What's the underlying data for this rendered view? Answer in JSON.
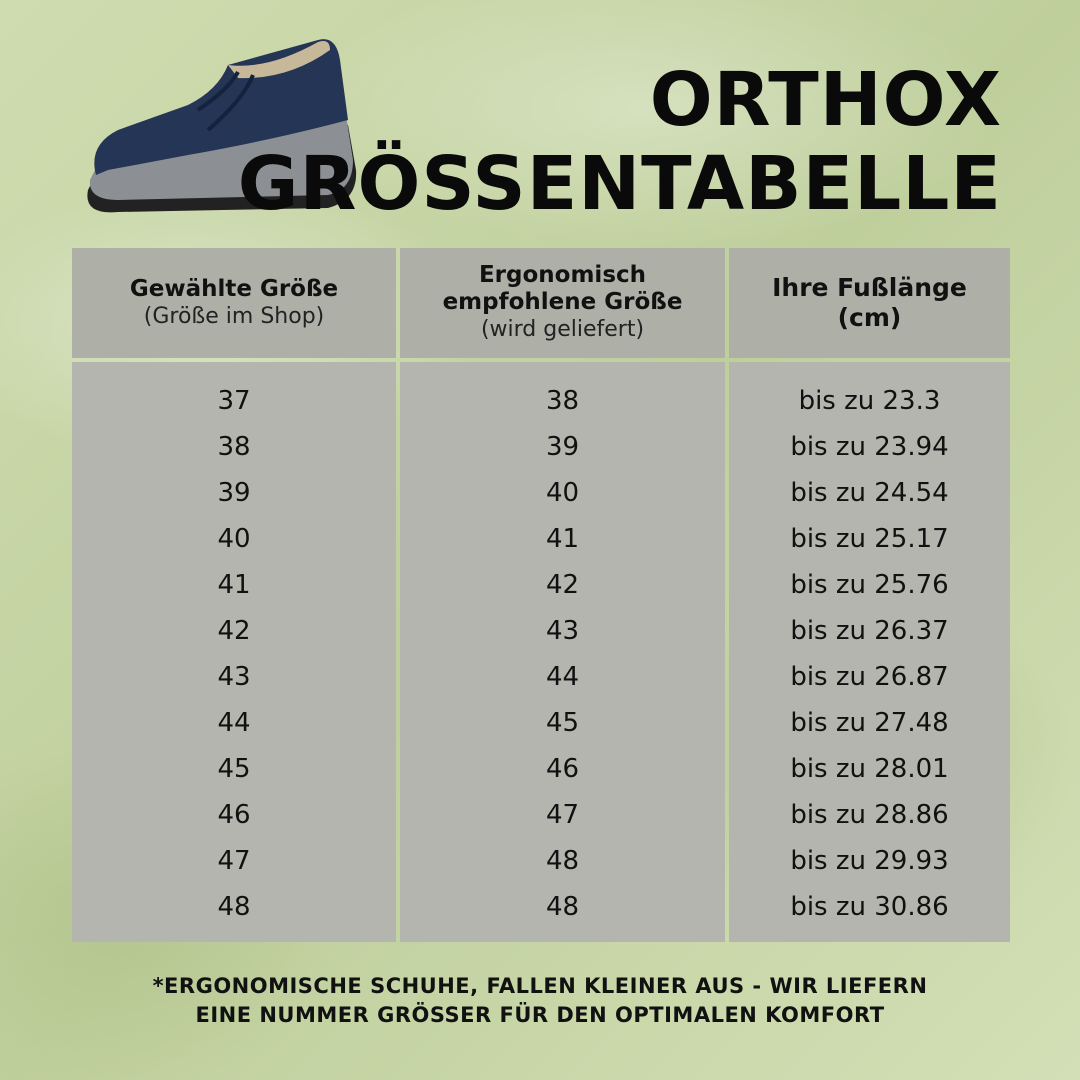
{
  "title": {
    "line1": "ORTHOX",
    "line2": "GRÖSSENTABELLE"
  },
  "table": {
    "headers": [
      {
        "bold": "Gewählte Größe",
        "sub": "(Größe im Shop)"
      },
      {
        "bold": "Ergonomisch empfohlene Größe",
        "sub": "(wird geliefert)"
      },
      {
        "bold": "Ihre Fußlänge (cm)",
        "sub": ""
      }
    ],
    "rows": [
      [
        "37",
        "38",
        "bis zu 23.3"
      ],
      [
        "38",
        "39",
        "bis zu 23.94"
      ],
      [
        "39",
        "40",
        "bis zu 24.54"
      ],
      [
        "40",
        "41",
        "bis zu 25.17"
      ],
      [
        "41",
        "42",
        "bis zu 25.76"
      ],
      [
        "42",
        "43",
        "bis zu 26.37"
      ],
      [
        "43",
        "44",
        "bis zu 26.87"
      ],
      [
        "44",
        "45",
        "bis zu 27.48"
      ],
      [
        "45",
        "46",
        "bis zu 28.01"
      ],
      [
        "46",
        "47",
        "bis zu 28.86"
      ],
      [
        "47",
        "48",
        "bis zu 29.93"
      ],
      [
        "48",
        "48",
        "bis zu 30.86"
      ]
    ]
  },
  "footnote": {
    "line1": "*ERGONOMISCHE SCHUHE, FALLEN KLEINER AUS - WIR LIEFERN",
    "line2": "EINE NUMMER GRÖSSER FÜR DEN OPTIMALEN KOMFORT"
  },
  "colors": {
    "background": "#c9d6a8",
    "table": "#b3b5ae",
    "shoe": "#243555"
  }
}
